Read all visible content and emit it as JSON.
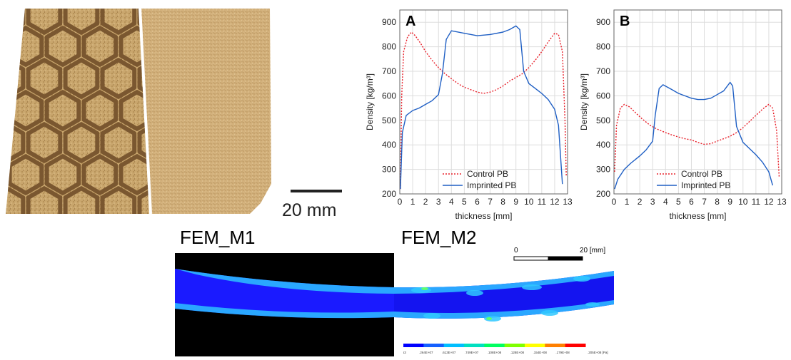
{
  "photo": {
    "scale_label": "20 mm"
  },
  "fem": {
    "m1_label": "FEM_M1",
    "m2_label": "FEM_M2",
    "scalebar": {
      "start": "0",
      "end": "20 [mm]"
    },
    "colorbar_ticks": [
      "163",
      ".264E+07",
      ".613E+07",
      ".749E+07",
      ".108E+08",
      ".128E+08",
      ".154E+08",
      ".179E+08",
      ".205E+08 [Pa]"
    ],
    "colorbar_colors": [
      "#0000ff",
      "#1560ff",
      "#00bfff",
      "#00e0c0",
      "#00ff60",
      "#80ff00",
      "#ffff00",
      "#ff8000",
      "#ff0000"
    ]
  },
  "chart_data": [
    {
      "type": "line",
      "panel_label": "A",
      "xlabel": "thickness [mm]",
      "ylabel": "Density [kg/m³]",
      "xlim": [
        0,
        13
      ],
      "ylim": [
        200,
        950
      ],
      "xticks": [
        0,
        1,
        2,
        3,
        4,
        5,
        6,
        7,
        8,
        9,
        10,
        11,
        12,
        13
      ],
      "yticks": [
        200,
        300,
        400,
        500,
        600,
        700,
        800,
        900
      ],
      "grid": true,
      "legend_position": "bottom-center",
      "series": [
        {
          "name": "Control PB",
          "color": "#e8202a",
          "style": "dotted",
          "points": [
            [
              0.05,
              220
            ],
            [
              0.15,
              600
            ],
            [
              0.3,
              780
            ],
            [
              0.6,
              840
            ],
            [
              0.9,
              860
            ],
            [
              1.2,
              845
            ],
            [
              1.6,
              815
            ],
            [
              2,
              780
            ],
            [
              2.5,
              745
            ],
            [
              3,
              715
            ],
            [
              3.5,
              690
            ],
            [
              4,
              670
            ],
            [
              4.5,
              650
            ],
            [
              5,
              635
            ],
            [
              5.5,
              625
            ],
            [
              6,
              615
            ],
            [
              6.5,
              610
            ],
            [
              7,
              615
            ],
            [
              7.5,
              625
            ],
            [
              8,
              640
            ],
            [
              8.5,
              660
            ],
            [
              9,
              675
            ],
            [
              9.5,
              690
            ],
            [
              10,
              715
            ],
            [
              10.5,
              745
            ],
            [
              11,
              780
            ],
            [
              11.5,
              820
            ],
            [
              12,
              855
            ],
            [
              12.3,
              850
            ],
            [
              12.6,
              780
            ],
            [
              12.8,
              500
            ],
            [
              12.9,
              270
            ]
          ]
        },
        {
          "name": "Imprinted PB",
          "color": "#1f5fc4",
          "style": "solid",
          "points": [
            [
              0.05,
              220
            ],
            [
              0.2,
              450
            ],
            [
              0.5,
              520
            ],
            [
              1,
              540
            ],
            [
              1.5,
              550
            ],
            [
              2,
              565
            ],
            [
              2.5,
              580
            ],
            [
              3,
              605
            ],
            [
              3.3,
              690
            ],
            [
              3.6,
              830
            ],
            [
              4,
              865
            ],
            [
              5,
              855
            ],
            [
              6,
              845
            ],
            [
              7,
              850
            ],
            [
              8,
              860
            ],
            [
              8.5,
              870
            ],
            [
              9,
              885
            ],
            [
              9.3,
              870
            ],
            [
              9.6,
              700
            ],
            [
              10,
              650
            ],
            [
              10.5,
              630
            ],
            [
              11,
              610
            ],
            [
              11.5,
              585
            ],
            [
              12,
              545
            ],
            [
              12.3,
              480
            ],
            [
              12.6,
              240
            ]
          ]
        }
      ]
    },
    {
      "type": "line",
      "panel_label": "B",
      "xlabel": "thickness [mm]",
      "ylabel": "Density [kg/m³]",
      "xlim": [
        0,
        13
      ],
      "ylim": [
        200,
        950
      ],
      "xticks": [
        0,
        1,
        2,
        3,
        4,
        5,
        6,
        7,
        8,
        9,
        10,
        11,
        12,
        13
      ],
      "yticks": [
        200,
        300,
        400,
        500,
        600,
        700,
        800,
        900
      ],
      "grid": true,
      "legend_position": "bottom-center",
      "series": [
        {
          "name": "Control PB",
          "color": "#e8202a",
          "style": "dotted",
          "points": [
            [
              0.05,
              290
            ],
            [
              0.2,
              480
            ],
            [
              0.5,
              550
            ],
            [
              0.8,
              565
            ],
            [
              1.2,
              555
            ],
            [
              1.7,
              530
            ],
            [
              2.2,
              505
            ],
            [
              2.8,
              480
            ],
            [
              3.3,
              465
            ],
            [
              4,
              450
            ],
            [
              4.5,
              440
            ],
            [
              5,
              432
            ],
            [
              5.5,
              425
            ],
            [
              6,
              420
            ],
            [
              6.5,
              410
            ],
            [
              7,
              402
            ],
            [
              7.5,
              405
            ],
            [
              8,
              415
            ],
            [
              8.5,
              425
            ],
            [
              9,
              435
            ],
            [
              9.5,
              450
            ],
            [
              10,
              470
            ],
            [
              10.5,
              495
            ],
            [
              11,
              520
            ],
            [
              11.5,
              545
            ],
            [
              12,
              565
            ],
            [
              12.3,
              550
            ],
            [
              12.6,
              460
            ],
            [
              12.8,
              270
            ]
          ]
        },
        {
          "name": "Imprinted PB",
          "color": "#1f5fc4",
          "style": "solid",
          "points": [
            [
              0.05,
              220
            ],
            [
              0.3,
              260
            ],
            [
              0.8,
              300
            ],
            [
              1.3,
              325
            ],
            [
              2,
              355
            ],
            [
              2.5,
              380
            ],
            [
              3,
              415
            ],
            [
              3.2,
              520
            ],
            [
              3.5,
              630
            ],
            [
              3.8,
              645
            ],
            [
              4.5,
              625
            ],
            [
              5,
              610
            ],
            [
              5.5,
              600
            ],
            [
              6,
              590
            ],
            [
              6.5,
              585
            ],
            [
              7,
              585
            ],
            [
              7.5,
              590
            ],
            [
              8,
              605
            ],
            [
              8.5,
              620
            ],
            [
              9,
              655
            ],
            [
              9.2,
              640
            ],
            [
              9.5,
              475
            ],
            [
              10,
              410
            ],
            [
              10.5,
              385
            ],
            [
              11,
              360
            ],
            [
              11.5,
              330
            ],
            [
              12,
              290
            ],
            [
              12.3,
              235
            ]
          ]
        }
      ]
    }
  ]
}
